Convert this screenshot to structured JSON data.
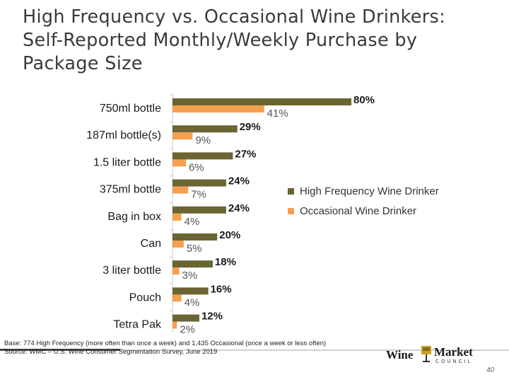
{
  "title": {
    "line1": "High Frequency vs. Occasional Wine Drinkers:",
    "line2": "Self-Reported Monthly/Weekly Purchase by",
    "line3": "Package Size"
  },
  "chart_data": {
    "type": "bar",
    "orientation": "horizontal",
    "categories": [
      "750ml bottle",
      "187ml bottle(s)",
      "1.5 liter bottle",
      "375ml bottle",
      "Bag in box",
      "Can",
      "3 liter bottle",
      "Pouch",
      "Tetra Pak"
    ],
    "series": [
      {
        "name": "High Frequency Wine Drinker",
        "color": "#6b6433",
        "values": [
          80,
          29,
          27,
          24,
          24,
          20,
          18,
          16,
          12
        ]
      },
      {
        "name": "Occasional Wine Drinker",
        "color": "#f4a050",
        "values": [
          41,
          9,
          6,
          7,
          4,
          5,
          3,
          4,
          2
        ]
      }
    ],
    "value_format": "%",
    "xlim": [
      0,
      100
    ],
    "legend_position": "right",
    "grid": false
  },
  "legend": {
    "high": "High Frequency Wine Drinker",
    "occasional": "Occasional Wine Drinker"
  },
  "footer": {
    "base": "Base: 774 High Frequency (more often than once a week) and 1,435 Occasional (once a week or less often)",
    "source": "Source: WMC – U.S. Wine Consumer Segmentation Survey, June 2019",
    "page": "40"
  },
  "logo": {
    "wine": "Wine",
    "market": "Market",
    "council": "COUNCIL"
  }
}
